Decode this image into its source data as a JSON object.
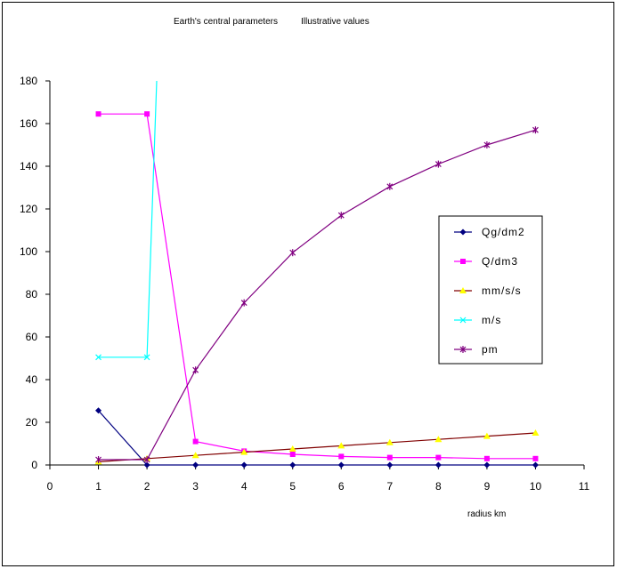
{
  "chart_data": {
    "type": "line",
    "title": "Earth's central parameters",
    "subtitle": "Illustrative values",
    "xlabel": "radius km",
    "ylabel": "",
    "xlim": [
      0,
      11
    ],
    "ylim": [
      0,
      180
    ],
    "x_ticks": [
      0,
      1,
      2,
      3,
      4,
      5,
      6,
      7,
      8,
      9,
      10,
      11
    ],
    "y_ticks": [
      0,
      20,
      40,
      60,
      80,
      100,
      120,
      140,
      160,
      180
    ],
    "grid": false,
    "legend_position": "right",
    "series": [
      {
        "name": "Qg/dm2",
        "color": "#000080",
        "marker": "diamond",
        "points": [
          [
            1,
            25.5
          ],
          [
            2,
            0
          ],
          [
            3,
            0
          ],
          [
            4,
            0
          ],
          [
            5,
            0
          ],
          [
            6,
            0
          ],
          [
            7,
            0
          ],
          [
            8,
            0
          ],
          [
            9,
            0
          ],
          [
            10,
            0
          ]
        ]
      },
      {
        "name": "Q/dm3",
        "color": "#ff00ff",
        "marker": "square",
        "points": [
          [
            1,
            164.5
          ],
          [
            2,
            164.5
          ],
          [
            3,
            11
          ],
          [
            4,
            6.5
          ],
          [
            5,
            5
          ],
          [
            6,
            4
          ],
          [
            7,
            3.5
          ],
          [
            8,
            3.5
          ],
          [
            9,
            3
          ],
          [
            10,
            3
          ]
        ]
      },
      {
        "name": "mm/s/s",
        "color": "#ffff00",
        "line_color": "#800000",
        "marker": "triangle",
        "points": [
          [
            1,
            1.5
          ],
          [
            2,
            3
          ],
          [
            3,
            4.5
          ],
          [
            4,
            6
          ],
          [
            5,
            7.5
          ],
          [
            6,
            9
          ],
          [
            7,
            10.5
          ],
          [
            8,
            12
          ],
          [
            9,
            13.5
          ],
          [
            10,
            15
          ]
        ]
      },
      {
        "name": "m/s",
        "color": "#00ffff",
        "marker": "x",
        "points": [
          [
            1,
            50.5
          ],
          [
            2,
            50.5
          ],
          [
            2.2,
            180
          ]
        ]
      },
      {
        "name": "pm",
        "color": "#800080",
        "marker": "star",
        "points": [
          [
            1,
            2.5
          ],
          [
            2,
            2.5
          ],
          [
            3,
            44.5
          ],
          [
            4,
            76
          ],
          [
            5,
            99.5
          ],
          [
            6,
            117
          ],
          [
            7,
            130.5
          ],
          [
            8,
            141
          ],
          [
            9,
            150
          ],
          [
            10,
            157
          ]
        ]
      }
    ]
  }
}
